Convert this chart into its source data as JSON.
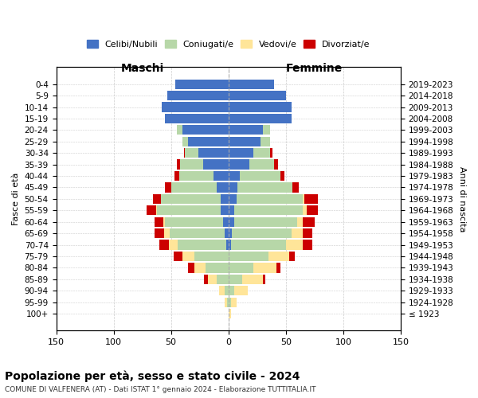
{
  "age_groups": [
    "100+",
    "95-99",
    "90-94",
    "85-89",
    "80-84",
    "75-79",
    "70-74",
    "65-69",
    "60-64",
    "55-59",
    "50-54",
    "45-49",
    "40-44",
    "35-39",
    "30-34",
    "25-29",
    "20-24",
    "15-19",
    "10-14",
    "5-9",
    "0-4"
  ],
  "birth_years": [
    "≤ 1923",
    "1924-1928",
    "1929-1933",
    "1934-1938",
    "1939-1943",
    "1944-1948",
    "1949-1953",
    "1954-1958",
    "1959-1963",
    "1964-1968",
    "1969-1973",
    "1974-1978",
    "1979-1983",
    "1984-1988",
    "1989-1993",
    "1994-1998",
    "1999-2003",
    "2004-2008",
    "2009-2013",
    "2014-2018",
    "2019-2023"
  ],
  "males": {
    "celibi": [
      0,
      0,
      0,
      0,
      0,
      0,
      2,
      3,
      5,
      7,
      7,
      10,
      13,
      22,
      26,
      35,
      40,
      55,
      58,
      53,
      46
    ],
    "coniugati": [
      0,
      1,
      3,
      10,
      20,
      30,
      42,
      48,
      50,
      55,
      52,
      40,
      30,
      20,
      12,
      5,
      5,
      0,
      0,
      0,
      0
    ],
    "vedovi": [
      0,
      2,
      5,
      8,
      10,
      10,
      8,
      5,
      2,
      1,
      0,
      0,
      0,
      0,
      0,
      0,
      0,
      0,
      0,
      0,
      0
    ],
    "divorziati": [
      0,
      0,
      0,
      3,
      5,
      8,
      8,
      8,
      7,
      8,
      7,
      5,
      4,
      3,
      1,
      0,
      0,
      0,
      0,
      0,
      0
    ]
  },
  "females": {
    "nubili": [
      0,
      0,
      0,
      0,
      0,
      0,
      2,
      3,
      5,
      5,
      7,
      8,
      10,
      18,
      22,
      28,
      30,
      55,
      55,
      50,
      40
    ],
    "coniugate": [
      0,
      2,
      5,
      12,
      22,
      35,
      48,
      52,
      55,
      60,
      58,
      48,
      35,
      22,
      14,
      8,
      6,
      0,
      0,
      0,
      0
    ],
    "vedove": [
      2,
      5,
      12,
      18,
      20,
      18,
      15,
      10,
      5,
      3,
      1,
      0,
      0,
      0,
      0,
      0,
      0,
      0,
      0,
      0,
      0
    ],
    "divorziate": [
      0,
      0,
      0,
      2,
      3,
      5,
      8,
      8,
      10,
      10,
      12,
      5,
      4,
      3,
      2,
      0,
      0,
      0,
      0,
      0,
      0
    ]
  },
  "colors": {
    "celibi_nubili": "#4472c4",
    "coniugati": "#b7d7a8",
    "vedovi": "#ffe599",
    "divorziati": "#cc0000"
  },
  "xlim": 150,
  "title": "Popolazione per età, sesso e stato civile - 2024",
  "subtitle": "COMUNE DI VALFENERA (AT) - Dati ISTAT 1° gennaio 2024 - Elaborazione TUTTITALIA.IT",
  "ylabel_left": "Fasce di età",
  "ylabel_right": "Anni di nascita",
  "xlabel_left": "Maschi",
  "xlabel_right": "Femmine",
  "bg_color": "#ffffff",
  "grid_color": "#cccccc"
}
